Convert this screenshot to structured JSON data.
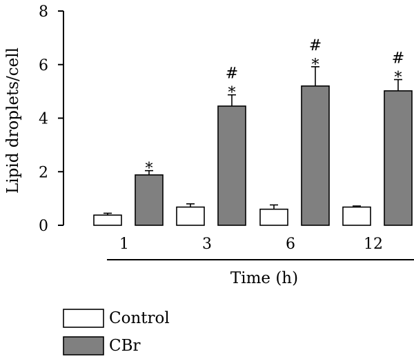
{
  "chart_data": {
    "type": "bar",
    "title": "",
    "xlabel": "Time (h)",
    "ylabel": "Lipid droplets/cell",
    "categories": [
      "1",
      "3",
      "6",
      "12"
    ],
    "ylim": [
      0,
      8
    ],
    "yticks": [
      "0",
      "2",
      "4",
      "6",
      "8"
    ],
    "series": [
      {
        "name": "Control",
        "color": "#ffffff",
        "values": [
          0.38,
          0.68,
          0.6,
          0.68
        ],
        "errors": [
          0.07,
          0.12,
          0.16,
          0.04
        ]
      },
      {
        "name": "CBr",
        "color": "#808080",
        "values": [
          1.88,
          4.45,
          5.2,
          5.02
        ],
        "errors": [
          0.16,
          0.42,
          0.72,
          0.42
        ]
      }
    ],
    "annotations": [
      {
        "series": "CBr",
        "category": "1",
        "text": [
          "*"
        ]
      },
      {
        "series": "CBr",
        "category": "3",
        "text": [
          "#",
          "*"
        ]
      },
      {
        "series": "CBr",
        "category": "6",
        "text": [
          "#",
          "*"
        ]
      },
      {
        "series": "CBr",
        "category": "12",
        "text": [
          "#",
          "*"
        ]
      }
    ],
    "legend_position": "bottom-left",
    "grid": false
  }
}
